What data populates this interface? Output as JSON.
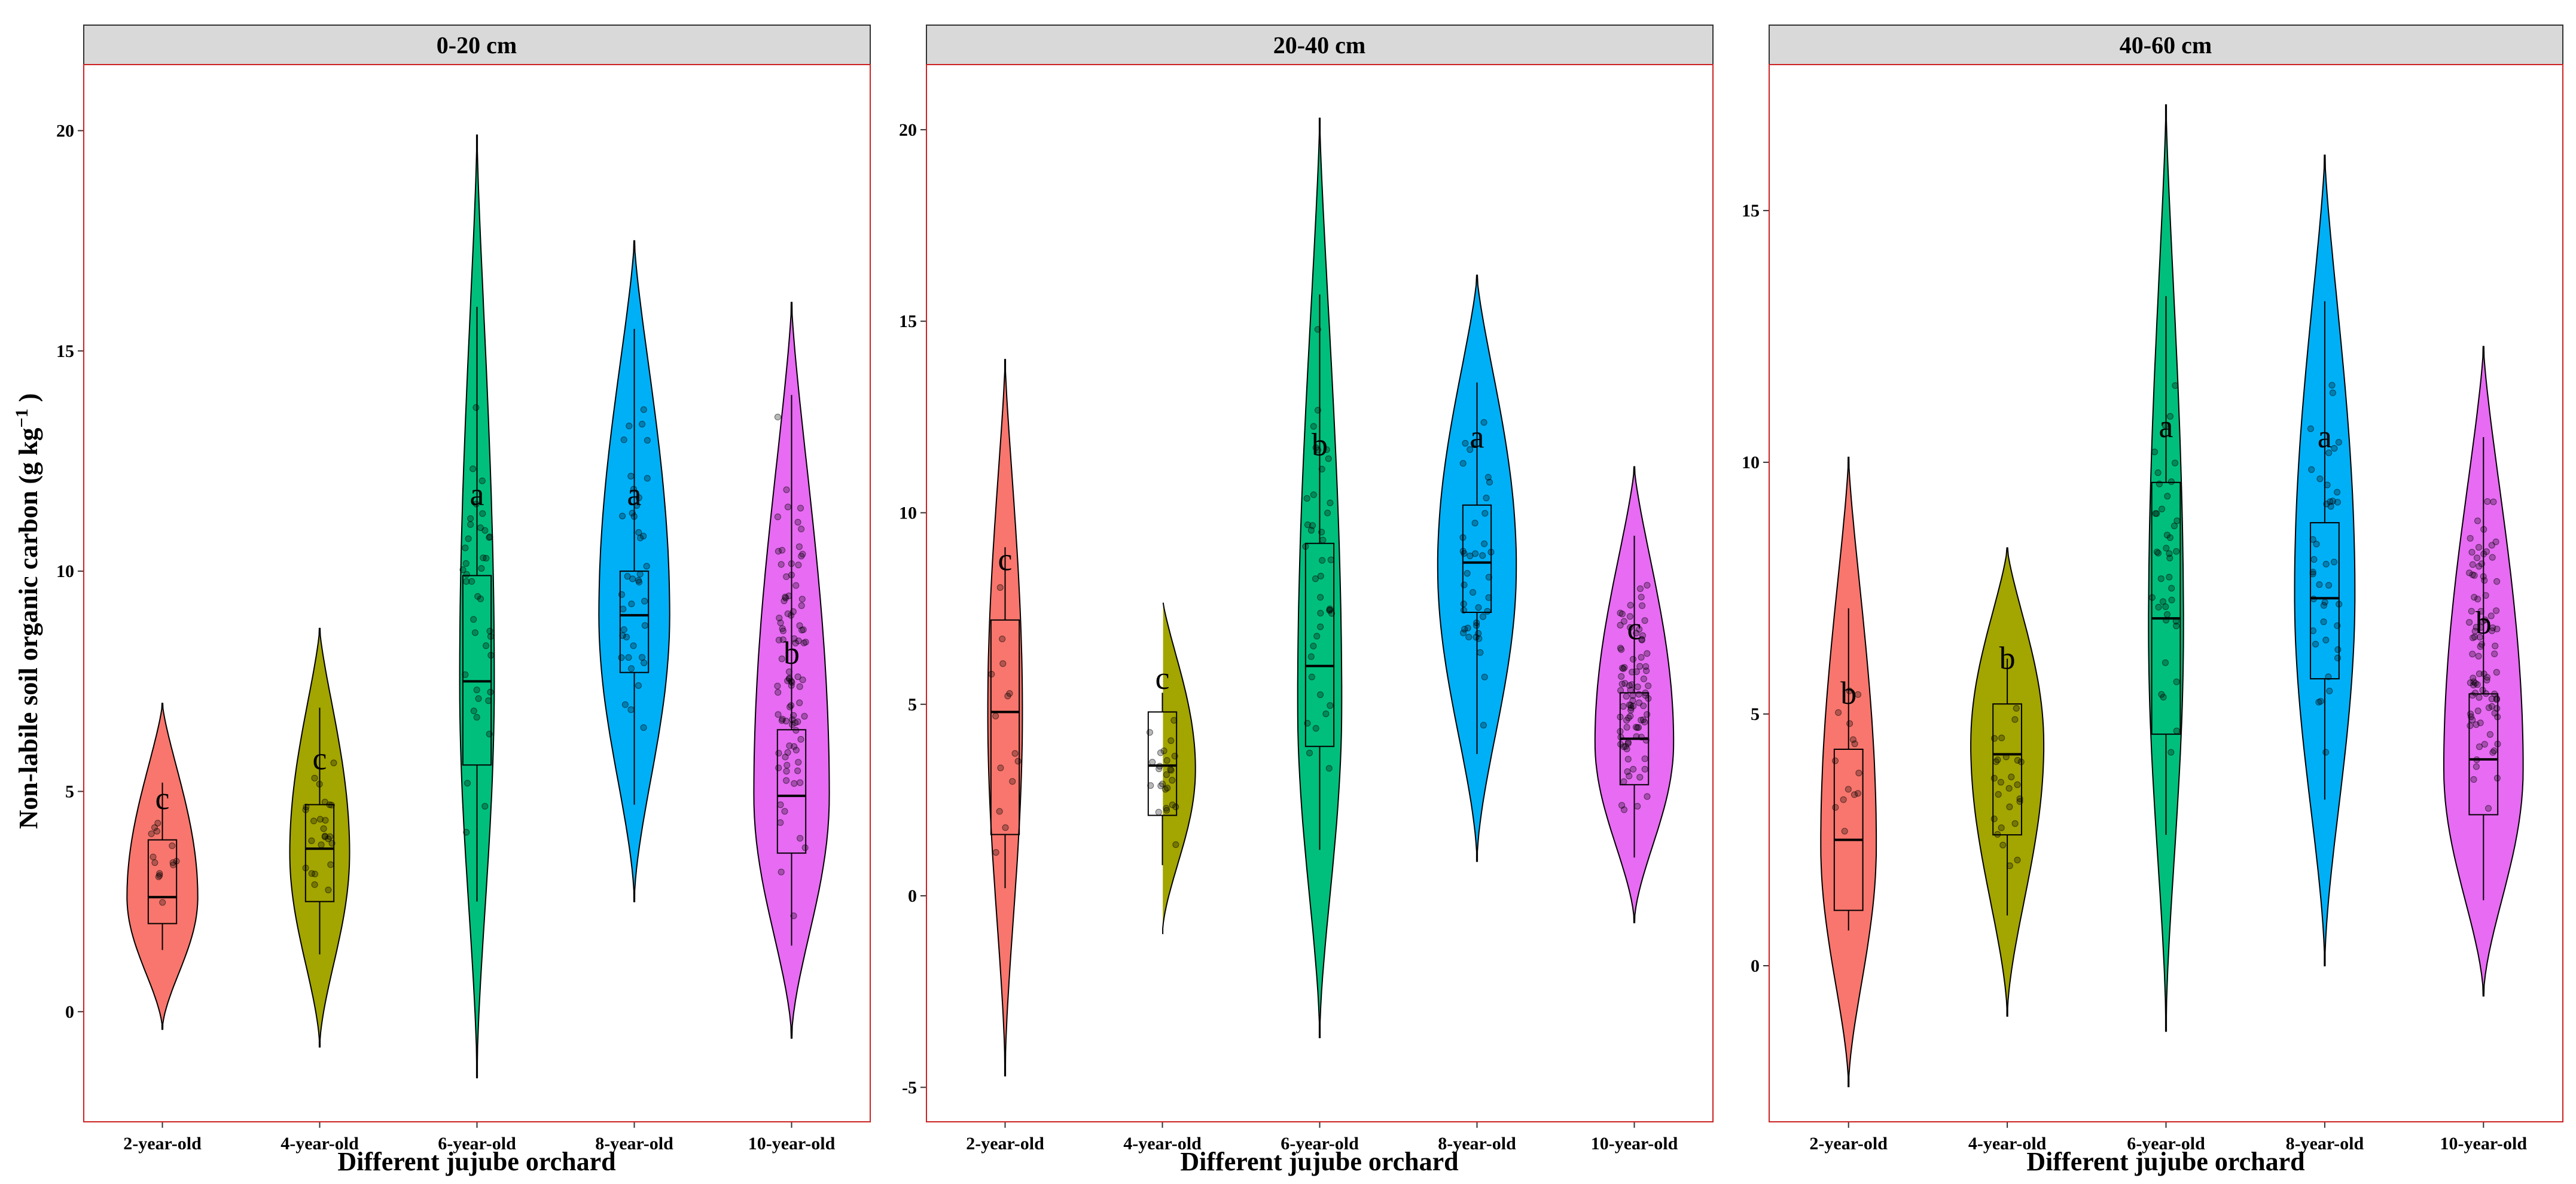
{
  "chart_data": [
    {
      "type": "violin",
      "title": "0-20 cm",
      "xlabel": "Different jujube orchard",
      "ylabel": "Non-labile soil organic carbon (g kg",
      "ylabel_sup": "−1",
      "ylabel_close": " )",
      "ylim": [
        -2.5,
        21.5
      ],
      "yticks": [
        0,
        5,
        10,
        15,
        20
      ],
      "ytick_labels": [
        "0",
        "5",
        "10",
        "15",
        "20"
      ],
      "categories": [
        "2-year-old",
        "4-year-old",
        "6-year-old",
        "8-year-old",
        "10-year-old"
      ],
      "colors": [
        "#F8766D",
        "#A3A500",
        "#00BF7D",
        "#00B0F6",
        "#E76BF3"
      ],
      "groups": [
        {
          "category": "2-year-old",
          "violin": {
            "min": -0.4,
            "max": 7.0,
            "mode": 2.6,
            "peak_width": 0.45
          },
          "box": {
            "q1": 2.0,
            "median": 2.6,
            "q3": 3.9,
            "whisker_low": 1.4,
            "whisker_high": 5.2
          },
          "letter": "c",
          "letter_y": 4.6,
          "points": 14
        },
        {
          "category": "4-year-old",
          "violin": {
            "min": -0.8,
            "max": 8.7,
            "mode": 3.6,
            "peak_width": 0.38
          },
          "box": {
            "q1": 2.5,
            "median": 3.7,
            "q3": 4.7,
            "whisker_low": 1.3,
            "whisker_high": 6.9
          },
          "letter": "c",
          "letter_y": 5.5,
          "points": 25
        },
        {
          "category": "6-year-old",
          "violin": {
            "min": -1.5,
            "max": 19.9,
            "mode": 7.5,
            "peak_width": 0.22
          },
          "box": {
            "q1": 5.6,
            "median": 7.5,
            "q3": 9.9,
            "whisker_low": 2.5,
            "whisker_high": 16.0
          },
          "letter": "a",
          "letter_y": 11.5,
          "points": 40
        },
        {
          "category": "8-year-old",
          "violin": {
            "min": 2.5,
            "max": 17.5,
            "mode": 9.0,
            "peak_width": 0.45
          },
          "box": {
            "q1": 7.7,
            "median": 9.0,
            "q3": 10.0,
            "whisker_low": 4.7,
            "whisker_high": 15.5
          },
          "letter": "a",
          "letter_y": 11.5,
          "points": 40
        },
        {
          "category": "10-year-old",
          "violin": {
            "min": -0.6,
            "max": 16.1,
            "mode": 4.9,
            "peak_width": 0.48
          },
          "box": {
            "q1": 3.6,
            "median": 4.9,
            "q3": 6.4,
            "whisker_low": 1.5,
            "whisker_high": 14.0
          },
          "letter": "b",
          "letter_y": 7.9,
          "points": 90
        }
      ]
    },
    {
      "type": "violin",
      "title": "20-40 cm",
      "xlabel": "Different jujube orchard",
      "ylim": [
        -5.9,
        21.7
      ],
      "yticks": [
        -5,
        0,
        5,
        10,
        15,
        20
      ],
      "ytick_labels": [
        "-5",
        "0",
        "5",
        "10",
        "15",
        "20"
      ],
      "categories": [
        "2-year-old",
        "4-year-old",
        "6-year-old",
        "8-year-old",
        "10-year-old"
      ],
      "colors": [
        "#F8766D",
        "#A3A500",
        "#00BF7D",
        "#00B0F6",
        "#E76BF3"
      ],
      "groups": [
        {
          "category": "2-year-old",
          "violin": {
            "min": -4.7,
            "max": 14.0,
            "mode": 4.8,
            "peak_width": 0.22
          },
          "box": {
            "q1": 1.6,
            "median": 4.8,
            "q3": 7.2,
            "whisker_low": 0.2,
            "whisker_high": 9.1
          },
          "letter": "c",
          "letter_y": 8.5,
          "points": 14
        },
        {
          "category": "4-year-old",
          "violin": {
            "min": -1.0,
            "max": 7.8,
            "mode": 3.3,
            "peak_width": 0.42
          },
          "box": {
            "q1": 2.1,
            "median": 3.4,
            "q3": 4.8,
            "whisker_low": 0.8,
            "whisker_high": 5.3
          },
          "letter": "c",
          "letter_y": 5.4,
          "points": 25
        },
        {
          "category": "6-year-old",
          "violin": {
            "min": -3.7,
            "max": 20.3,
            "mode": 5.0,
            "peak_width": 0.28
          },
          "box": {
            "q1": 3.9,
            "median": 6.0,
            "q3": 9.2,
            "whisker_low": 1.2,
            "whisker_high": 15.7
          },
          "letter": "b",
          "letter_y": 11.5,
          "points": 40
        },
        {
          "category": "8-year-old",
          "violin": {
            "min": 0.9,
            "max": 16.2,
            "mode": 8.6,
            "peak_width": 0.5
          },
          "box": {
            "q1": 7.4,
            "median": 8.7,
            "q3": 10.2,
            "whisker_low": 3.7,
            "whisker_high": 13.4
          },
          "letter": "a",
          "letter_y": 11.7,
          "points": 40
        },
        {
          "category": "10-year-old",
          "violin": {
            "min": -0.7,
            "max": 11.2,
            "mode": 4.0,
            "peak_width": 0.5
          },
          "box": {
            "q1": 2.9,
            "median": 4.1,
            "q3": 5.3,
            "whisker_low": 1.0,
            "whisker_high": 9.4
          },
          "letter": "c",
          "letter_y": 6.7,
          "points": 90
        }
      ]
    },
    {
      "type": "violin",
      "title": "40-60 cm",
      "xlabel": "Different jujube orchard",
      "ylim": [
        -3.1,
        17.9
      ],
      "yticks": [
        0,
        5,
        10,
        15
      ],
      "ytick_labels": [
        "0",
        "5",
        "10",
        "15"
      ],
      "categories": [
        "2-year-old",
        "4-year-old",
        "6-year-old",
        "8-year-old",
        "10-year-old"
      ],
      "colors": [
        "#F8766D",
        "#A3A500",
        "#00BF7D",
        "#00B0F6",
        "#E76BF3"
      ],
      "groups": [
        {
          "category": "2-year-old",
          "violin": {
            "min": -2.4,
            "max": 10.1,
            "mode": 2.4,
            "peak_width": 0.35
          },
          "box": {
            "q1": 1.1,
            "median": 2.5,
            "q3": 4.3,
            "whisker_low": 0.7,
            "whisker_high": 7.1
          },
          "letter": "b",
          "letter_y": 5.2,
          "points": 14
        },
        {
          "category": "4-year-old",
          "violin": {
            "min": -1.0,
            "max": 8.3,
            "mode": 4.4,
            "peak_width": 0.46
          },
          "box": {
            "q1": 2.6,
            "median": 4.2,
            "q3": 5.2,
            "whisker_low": 1.0,
            "whisker_high": 6.1
          },
          "letter": "b",
          "letter_y": 5.9,
          "points": 25
        },
        {
          "category": "6-year-old",
          "violin": {
            "min": -1.3,
            "max": 17.1,
            "mode": 6.7,
            "peak_width": 0.22
          },
          "box": {
            "q1": 4.6,
            "median": 6.9,
            "q3": 9.6,
            "whisker_low": 2.6,
            "whisker_high": 13.3
          },
          "letter": "a",
          "letter_y": 10.5,
          "points": 40
        },
        {
          "category": "8-year-old",
          "violin": {
            "min": 0.0,
            "max": 16.1,
            "mode": 7.4,
            "peak_width": 0.38
          },
          "box": {
            "q1": 5.7,
            "median": 7.3,
            "q3": 8.8,
            "whisker_low": 3.3,
            "whisker_high": 13.2
          },
          "letter": "a",
          "letter_y": 10.3,
          "points": 40
        },
        {
          "category": "10-year-old",
          "violin": {
            "min": -0.6,
            "max": 12.3,
            "mode": 3.9,
            "peak_width": 0.5
          },
          "box": {
            "q1": 3.0,
            "median": 4.1,
            "q3": 5.4,
            "whisker_low": 1.3,
            "whisker_high": 10.5
          },
          "letter": "b",
          "letter_y": 6.6,
          "points": 90
        }
      ]
    }
  ]
}
